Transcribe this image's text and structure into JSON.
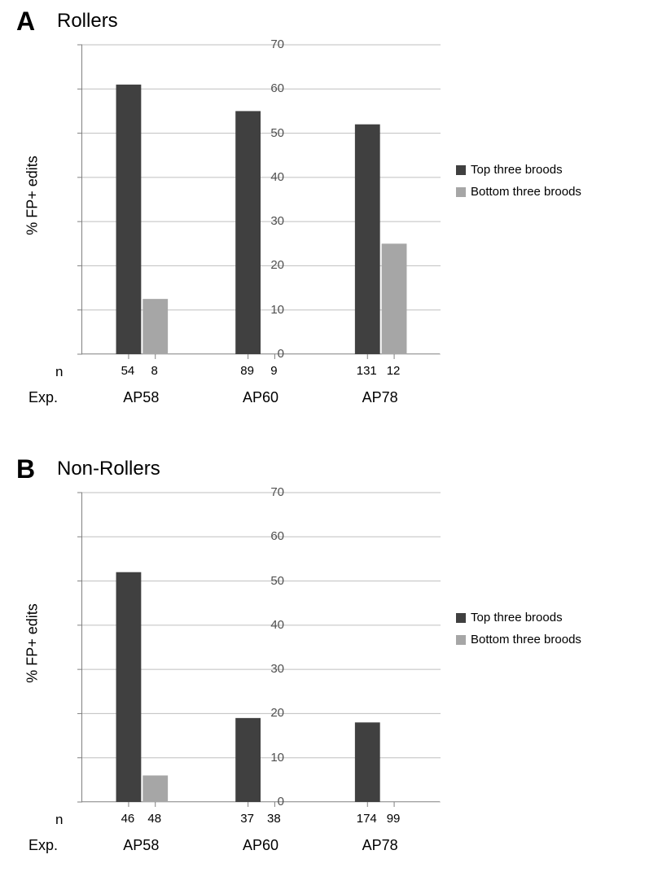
{
  "panel_a": {
    "letter": "A",
    "title": "Rollers",
    "chart": {
      "type": "bar",
      "ylabel": "% FP+ edits",
      "ylim": [
        0,
        70
      ],
      "ytick_step": 10,
      "categories": [
        "AP58",
        "AP60",
        "AP78"
      ],
      "series": [
        {
          "name": "Top three broods",
          "color": "#404040",
          "values": [
            61,
            55,
            52
          ]
        },
        {
          "name": "Bottom three broods",
          "color": "#a6a6a6",
          "values": [
            12.5,
            0,
            25
          ]
        }
      ],
      "n_values": [
        [
          "54",
          "8"
        ],
        [
          "89",
          "9"
        ],
        [
          "131",
          "12"
        ]
      ],
      "background_color": "#ffffff",
      "grid_color": "#bfbfbf",
      "axis_color": "#808080",
      "bar_width": 0.42,
      "title_fontsize": 24,
      "label_fontsize": 18,
      "tick_fontsize": 15
    }
  },
  "panel_b": {
    "letter": "B",
    "title": "Non-Rollers",
    "chart": {
      "type": "bar",
      "ylabel": "% FP+ edits",
      "ylim": [
        0,
        70
      ],
      "ytick_step": 10,
      "categories": [
        "AP58",
        "AP60",
        "AP78"
      ],
      "series": [
        {
          "name": "Top three broods",
          "color": "#404040",
          "values": [
            52,
            19,
            18
          ]
        },
        {
          "name": "Bottom three broods",
          "color": "#a6a6a6",
          "values": [
            6,
            0,
            0
          ]
        }
      ],
      "n_values": [
        [
          "46",
          "48"
        ],
        [
          "37",
          "38"
        ],
        [
          "174",
          "99"
        ]
      ],
      "background_color": "#ffffff",
      "grid_color": "#bfbfbf",
      "axis_color": "#808080",
      "bar_width": 0.42,
      "title_fontsize": 24,
      "label_fontsize": 18,
      "tick_fontsize": 15
    }
  },
  "axis_labels": {
    "n": "n",
    "exp": "Exp."
  },
  "legend": {
    "top": "Top three broods",
    "bottom": "Bottom three broods",
    "top_color": "#404040",
    "bottom_color": "#a6a6a6"
  }
}
